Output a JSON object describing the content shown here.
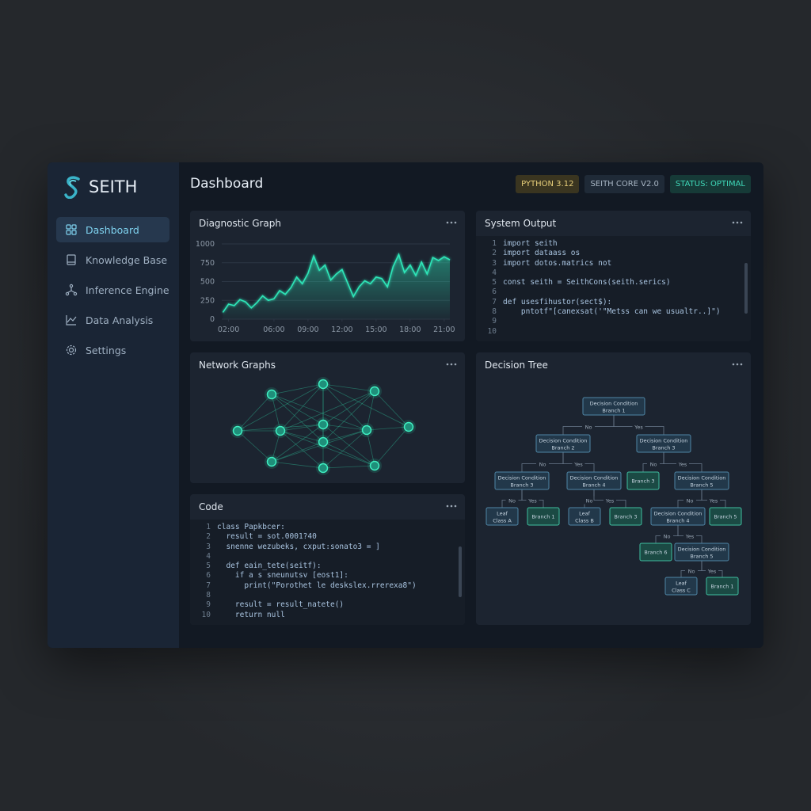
{
  "sidebar": {
    "brand": "SEITH",
    "nav": [
      "Dashboard",
      "Knowledge Base",
      "Inference Engine",
      "Data Analysis",
      "Settings"
    ]
  },
  "header": {
    "title": "Dashboard",
    "badges": [
      "PYTHON 3.12",
      "SEITH CORE V2.0",
      "STATUS: OPTIMAL"
    ]
  },
  "chart_data": {
    "type": "line",
    "title": "Diagnostic Graph",
    "x": [
      1.5,
      2,
      2.5,
      3,
      3.5,
      4,
      4.5,
      5,
      5.5,
      6,
      6.5,
      7,
      7.5,
      8,
      8.5,
      9,
      9.5,
      10,
      10.5,
      11,
      11.5,
      12,
      12.5,
      13,
      13.5,
      14,
      14.5,
      15,
      15.5,
      16,
      16.5,
      17,
      17.5,
      18,
      18.5,
      19,
      19.5,
      20,
      20.5,
      21,
      21.5
    ],
    "values": [
      90,
      200,
      180,
      260,
      230,
      150,
      220,
      310,
      250,
      270,
      380,
      330,
      420,
      560,
      470,
      610,
      840,
      650,
      720,
      520,
      600,
      660,
      480,
      300,
      430,
      510,
      470,
      560,
      540,
      430,
      700,
      860,
      620,
      720,
      580,
      760,
      600,
      820,
      780,
      830,
      790
    ],
    "color": "#2ee6b8",
    "xlim": [
      1.4,
      21.5
    ],
    "xticks": [
      {
        "value": 2,
        "label": "02:00"
      },
      {
        "value": 6,
        "label": "06:00"
      },
      {
        "value": 9,
        "label": "09:00"
      },
      {
        "value": 12,
        "label": "12:00"
      },
      {
        "value": 15,
        "label": "15:00"
      },
      {
        "value": 18,
        "label": "18:00"
      },
      {
        "value": 21,
        "label": "21:00"
      }
    ],
    "ylim": [
      0,
      1000
    ],
    "yticks": [
      0,
      250,
      500,
      750,
      1000
    ],
    "grid": true
  },
  "system_output": {
    "title": "System Output",
    "lines": [
      {
        "n": 1,
        "text": "import seith"
      },
      {
        "n": 2,
        "text": "import dataass os"
      },
      {
        "n": 3,
        "text": "import dotos.matrics not"
      },
      {
        "n": 4
      },
      {
        "n": 5,
        "text": "const seith = SeithCons(seith.serics)"
      },
      {
        "n": 6
      },
      {
        "n": 7,
        "text": "def usesfihustor(sect$):"
      },
      {
        "n": 8,
        "text": "    pntotf\"[canexsat('\"Metss can we usualtr..]\")"
      },
      {
        "n": 9
      },
      {
        "n": 10
      }
    ]
  },
  "network_graphs": {
    "title": "Network Graphs"
  },
  "code": {
    "title": "Code",
    "lines": [
      {
        "n": 1,
        "text": "class Papkbcer:"
      },
      {
        "n": 2,
        "text": "  result = sot.0001?40"
      },
      {
        "n": 3,
        "text": "  snenne wezubeks, cxput:sonato3 = ]"
      },
      {
        "n": 4
      },
      {
        "n": 5,
        "text": "  def eain_tete(seitf):"
      },
      {
        "n": 6,
        "text": "    if a s sneunutsv [eost1]:"
      },
      {
        "n": 7,
        "text": "      print(\"Porothet le deskslex.rrerexa8\")"
      },
      {
        "n": 8
      },
      {
        "n": 9,
        "text": "    result = result_natete()"
      },
      {
        "n": 10,
        "text": "    return null"
      }
    ]
  },
  "decision_tree": {
    "title": "Decision Tree",
    "nodes": [
      {
        "lines": [
          "Decision Condition",
          "Branch 1"
        ]
      },
      {
        "lines": [
          "Decision Condition",
          "Branch 2"
        ],
        "edge_label": "No"
      },
      {
        "lines": [
          "Decision Condition",
          "Branch 3"
        ],
        "edge_label": "Yes"
      },
      {
        "lines": [
          "Decision Condition",
          "Branch 3"
        ],
        "edge_label": "No"
      },
      {
        "lines": [
          "Decision Condition",
          "Branch 4"
        ],
        "edge_label": "Yes"
      },
      {
        "lines": [
          "Branch 3"
        ],
        "edge_label": "No"
      },
      {
        "lines": [
          "Decision Condition",
          "Branch 5"
        ],
        "edge_label": "Yes"
      },
      {
        "lines": [
          "Leaf",
          "Class A"
        ],
        "edge_label": "No"
      },
      {
        "lines": [
          "Branch 1"
        ],
        "edge_label": "Yes"
      },
      {
        "lines": [
          "Leaf",
          "Class B"
        ],
        "edge_label": "No"
      },
      {
        "lines": [
          "Branch 3"
        ],
        "edge_label": "Yes"
      },
      {
        "lines": [
          "Decision Condition",
          "Branch 4"
        ],
        "edge_label": "No"
      },
      {
        "lines": [
          "Branch 5"
        ],
        "edge_label": "Yes"
      },
      {
        "lines": [
          "Branch 6"
        ],
        "edge_label": "No"
      },
      {
        "lines": [
          "Decision Condition",
          "Branch 5"
        ],
        "edge_label": "Yes"
      },
      {
        "lines": [
          "Leaf",
          "Class C"
        ],
        "edge_label": "No"
      },
      {
        "lines": [
          "Branch 1"
        ],
        "edge_label": "Yes"
      }
    ]
  }
}
